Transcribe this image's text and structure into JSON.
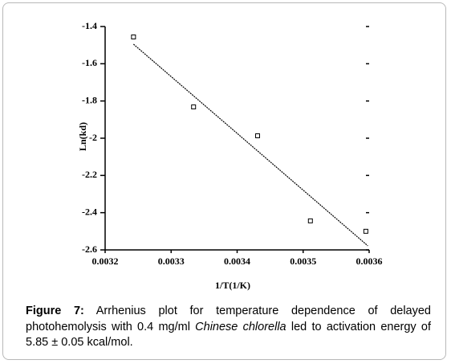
{
  "chart_data": {
    "type": "scatter",
    "x_label": "1/T(1/K)",
    "y_label": "Ln(kd)",
    "x": [
      0.003243,
      0.003334,
      0.003431,
      0.003511,
      0.003595
    ],
    "values": [
      -1.456,
      -1.832,
      -1.987,
      -2.444,
      -2.5
    ],
    "color": "#000000",
    "fit": {
      "x": [
        0.003243,
        0.003598
      ],
      "y": [
        -1.495,
        -2.578
      ]
    },
    "xlim": [
      0.0032,
      0.0036
    ],
    "xticks": [
      0.0032,
      0.0033,
      0.0034,
      0.0035,
      0.0036
    ],
    "ylim": [
      -2.6,
      -1.4
    ],
    "yticks": [
      -1.4,
      -1.6,
      -1.8,
      -2,
      -2.2,
      -2.4,
      -2.6
    ],
    "grid": false
  },
  "caption": {
    "label": "Figure 7:",
    "text_before": "Arrhenius plot for temperature dependence of delayed photohemolysis with 0.4 mg/ml",
    "italic": "Chinese chlorella",
    "text_after": "led to activation energy of 5.85 ± 0.05 kcal/mol."
  }
}
